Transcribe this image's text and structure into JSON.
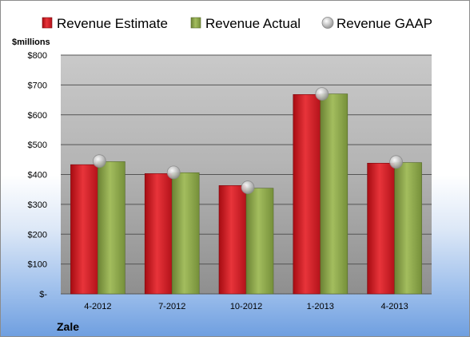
{
  "chart_data": {
    "type": "bar",
    "title": "",
    "company": "Zale",
    "ylabel": "$millions",
    "xlabel": "",
    "categories": [
      "4-2012",
      "7-2012",
      "10-2012",
      "1-2013",
      "4-2013"
    ],
    "ylim": [
      0,
      800
    ],
    "yticks": [
      0,
      100,
      200,
      300,
      400,
      500,
      600,
      700,
      800
    ],
    "ytick_labels": [
      "$-",
      "$100",
      "$200",
      "$300",
      "$400",
      "$500",
      "$600",
      "$700",
      "$800"
    ],
    "grid": true,
    "legend_position": "top",
    "series": [
      {
        "name": "Revenue Estimate",
        "kind": "bar",
        "color": "#d9141c",
        "values": [
          433,
          403,
          363,
          668,
          438
        ]
      },
      {
        "name": "Revenue Actual",
        "kind": "bar",
        "color": "#8ca64a",
        "values": [
          443,
          406,
          354,
          670,
          440
        ]
      },
      {
        "name": "Revenue GAAP",
        "kind": "marker",
        "color": "#b8b8b8",
        "values": [
          445,
          407,
          357,
          670,
          442
        ]
      }
    ]
  }
}
